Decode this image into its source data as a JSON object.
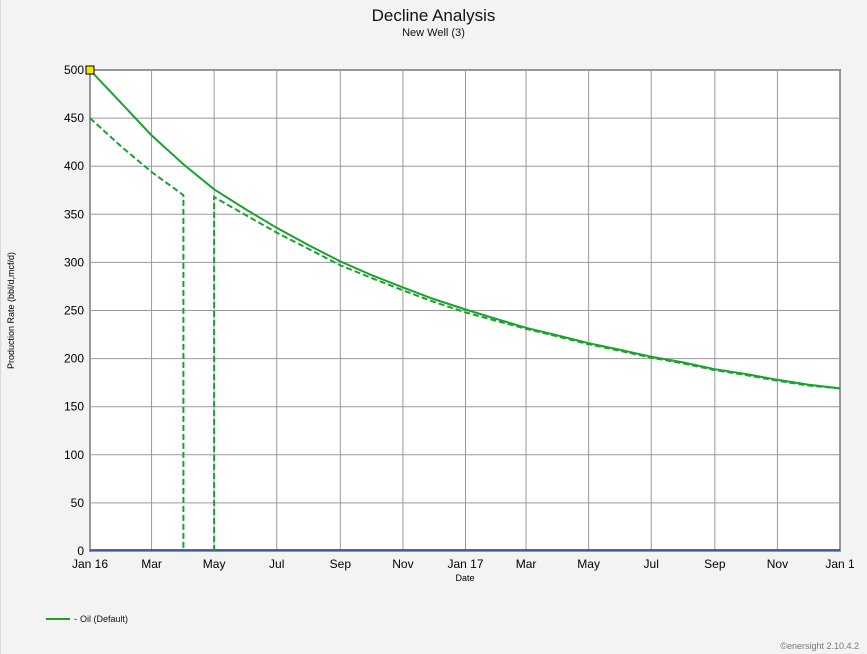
{
  "chart_data": {
    "type": "line",
    "title": "Decline Analysis",
    "subtitle": "New Well (3)",
    "xlabel": "Date",
    "ylabel": "Production Rate (bbl/d,mcf/d)",
    "ylim": [
      0,
      500
    ],
    "yticks": [
      0,
      50,
      100,
      150,
      200,
      250,
      300,
      350,
      400,
      450,
      500
    ],
    "xlim": [
      "2016-01-01",
      "2018-01-01"
    ],
    "xticks": [
      {
        "date": "2016-01-01",
        "label": "Jan 16"
      },
      {
        "date": "2016-03-01",
        "label": "Mar"
      },
      {
        "date": "2016-05-01",
        "label": "May"
      },
      {
        "date": "2016-07-01",
        "label": "Jul"
      },
      {
        "date": "2016-09-01",
        "label": "Sep"
      },
      {
        "date": "2016-11-01",
        "label": "Nov"
      },
      {
        "date": "2017-01-01",
        "label": "Jan 17"
      },
      {
        "date": "2017-03-01",
        "label": "Mar"
      },
      {
        "date": "2017-05-01",
        "label": "May"
      },
      {
        "date": "2017-07-01",
        "label": "Jul"
      },
      {
        "date": "2017-09-01",
        "label": "Sep"
      },
      {
        "date": "2017-11-01",
        "label": "Nov"
      },
      {
        "date": "2018-01-01",
        "label": "Jan 1"
      }
    ],
    "grid": true,
    "legend_position": "bottom-left",
    "series": [
      {
        "name": "Oil",
        "style": "solid",
        "color": "#1aa12e",
        "points": [
          [
            "2016-01-01",
            500
          ],
          [
            "2016-02-01",
            465
          ],
          [
            "2016-03-01",
            432
          ],
          [
            "2016-04-01",
            402
          ],
          [
            "2016-05-01",
            376
          ],
          [
            "2016-06-01",
            355
          ],
          [
            "2016-07-01",
            336
          ],
          [
            "2016-08-01",
            318
          ],
          [
            "2016-09-01",
            301
          ],
          [
            "2016-10-01",
            287
          ],
          [
            "2016-11-01",
            274
          ],
          [
            "2016-12-01",
            262
          ],
          [
            "2017-01-01",
            251
          ],
          [
            "2017-02-01",
            241
          ],
          [
            "2017-03-01",
            232
          ],
          [
            "2017-04-01",
            224
          ],
          [
            "2017-05-01",
            216
          ],
          [
            "2017-06-01",
            209
          ],
          [
            "2017-07-01",
            202
          ],
          [
            "2017-08-01",
            196
          ],
          [
            "2017-09-01",
            189
          ],
          [
            "2017-10-01",
            184
          ],
          [
            "2017-11-01",
            178
          ],
          [
            "2017-12-01",
            173
          ],
          [
            "2018-01-01",
            169
          ]
        ]
      },
      {
        "name": "Oil",
        "style": "dashed",
        "color": "#1aa12e",
        "segments": [
          [
            [
              "2016-01-01",
              450
            ],
            [
              "2016-02-01",
              420
            ],
            [
              "2016-03-01",
              394
            ],
            [
              "2016-04-01",
              370
            ],
            [
              "2016-04-01",
              0
            ]
          ],
          [
            [
              "2016-05-01",
              0
            ],
            [
              "2016-05-01",
              368
            ],
            [
              "2016-06-01",
              349
            ],
            [
              "2016-07-01",
              331
            ],
            [
              "2016-08-01",
              314
            ],
            [
              "2016-09-01",
              297
            ],
            [
              "2016-10-01",
              284
            ],
            [
              "2016-11-01",
              271
            ],
            [
              "2016-12-01",
              259
            ],
            [
              "2017-01-01",
              248
            ],
            [
              "2017-02-01",
              239
            ],
            [
              "2017-03-01",
              231
            ],
            [
              "2017-04-01",
              223
            ],
            [
              "2017-05-01",
              215
            ],
            [
              "2017-06-01",
              208
            ],
            [
              "2017-07-01",
              201
            ],
            [
              "2017-08-01",
              195
            ],
            [
              "2017-09-01",
              188
            ],
            [
              "2017-10-01",
              183
            ],
            [
              "2017-11-01",
              177
            ],
            [
              "2017-12-01",
              172
            ],
            [
              "2018-01-01",
              169
            ]
          ]
        ]
      }
    ],
    "baseline": {
      "value": 0,
      "color": "#1f3c9c"
    },
    "marker": {
      "date": "2016-01-01",
      "value": 500,
      "color": "#f6e500"
    }
  },
  "legend": {
    "prefix": "-",
    "label": "Oil (Default)",
    "color": "#1aa12e"
  },
  "footer": "©enersight 2.10.4.2"
}
